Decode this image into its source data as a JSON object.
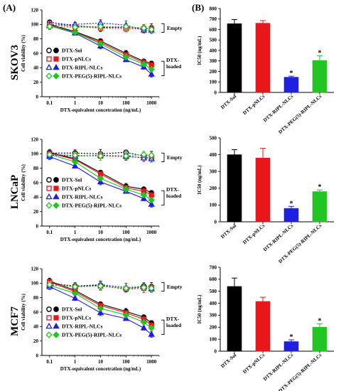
{
  "panel_labels": [
    "(A)",
    "(B)"
  ],
  "rows": [
    {
      "cell_line": "SKOV3"
    },
    {
      "cell_line": "LNCaP"
    },
    {
      "cell_line": "MCF7"
    }
  ],
  "colors": {
    "DTX-Sol": "#000000",
    "DTX-pNLCs": "#e8171b",
    "DTX-RIPL-NLCs": "#1f1fe0",
    "DTX-PEG(5)-RIPL-NLCs": "#22c522"
  },
  "chart_data": [
    {
      "type": "line",
      "cell_line": "SKOV3",
      "xlabel": "DTX-equivalent concetration (ng/mL)",
      "ylabel": "Cell viability (%)",
      "xscale": "log",
      "x": [
        0.1,
        1,
        10,
        100,
        500,
        1000
      ],
      "x_ticks": [
        "0.1",
        "1",
        "10",
        "100",
        "1000"
      ],
      "y_ticks": [
        "0",
        "20",
        "40",
        "60",
        "80",
        "100",
        "120"
      ],
      "ylim": [
        0,
        120
      ],
      "legend": [
        "DTX-Sol",
        "DTX-pNLCs",
        "DTX-RIPL-NLCs",
        "DTX-PEG(5)-RIPL-NLCs"
      ],
      "annotations": [
        "Empty",
        "DTX-loaded"
      ],
      "series": [
        {
          "name": "DTX-Sol",
          "group": "empty",
          "marker": "circle",
          "values": [
            103,
            98,
            96,
            96,
            95,
            95
          ]
        },
        {
          "name": "DTX-pNLCs",
          "group": "empty",
          "marker": "square",
          "values": [
            100,
            97,
            95,
            94,
            94,
            94
          ]
        },
        {
          "name": "DTX-RIPL-NLCs",
          "group": "empty",
          "marker": "triangle",
          "values": [
            99,
            100,
            102,
            99,
            92,
            92
          ]
        },
        {
          "name": "DTX-PEG(5)-RIPL-NLCs",
          "group": "empty",
          "marker": "diamond",
          "values": [
            97,
            96,
            97,
            97,
            95,
            93
          ]
        },
        {
          "name": "DTX-Sol",
          "group": "loaded",
          "marker": "circle",
          "values": [
            100,
            90,
            77,
            60,
            49,
            46
          ]
        },
        {
          "name": "DTX-pNLCs",
          "group": "loaded",
          "marker": "square",
          "values": [
            99,
            89,
            75,
            58,
            47,
            44
          ]
        },
        {
          "name": "DTX-RIPL-NLCs",
          "group": "loaded",
          "marker": "triangle",
          "values": [
            98,
            88,
            70,
            51,
            41,
            31
          ]
        },
        {
          "name": "DTX-PEG(5)-RIPL-NLCs",
          "group": "loaded",
          "marker": "diamond",
          "values": [
            98,
            89,
            73,
            55,
            45,
            38
          ]
        }
      ]
    },
    {
      "type": "bar",
      "cell_line": "SKOV3",
      "ylabel": "IC50 (ng/mL)",
      "categories": [
        "DTX-Sol",
        "DTX-pNLCs",
        "DTX-RIPL-NLCs",
        "DTX-PEG(5)-RIPL-NLCs"
      ],
      "values": [
        655,
        660,
        145,
        305
      ],
      "errors": [
        40,
        25,
        10,
        45
      ],
      "significant": [
        false,
        false,
        true,
        true
      ],
      "y_ticks": [
        "0",
        "100",
        "200",
        "300",
        "400",
        "500",
        "600",
        "700",
        "800"
      ],
      "ylim": [
        0,
        800
      ]
    },
    {
      "type": "line",
      "cell_line": "LNCaP",
      "xlabel": "DTX-equivalent concetration (ng/mL)",
      "ylabel": "Cell viability (%)",
      "xscale": "log",
      "x": [
        0.1,
        1,
        10,
        100,
        500,
        1000
      ],
      "x_ticks": [
        "0.1",
        "1",
        "10",
        "100",
        "1000"
      ],
      "y_ticks": [
        "0",
        "20",
        "40",
        "60",
        "80",
        "100",
        "120"
      ],
      "ylim": [
        0,
        120
      ],
      "legend": [
        "DTX-Sol",
        "DTX-pNLCs",
        "DTX-RIPL-NLCs",
        "DTX-PEG(5)-RIPL-NLCs"
      ],
      "annotations": [
        "Empty",
        "DTX-loaded"
      ],
      "series": [
        {
          "name": "DTX-Sol",
          "group": "empty",
          "marker": "circle",
          "values": [
            101,
            101,
            100,
            102,
            97,
            97
          ]
        },
        {
          "name": "DTX-pNLCs",
          "group": "empty",
          "marker": "square",
          "values": [
            100,
            97,
            97,
            96,
            95,
            95
          ]
        },
        {
          "name": "DTX-RIPL-NLCs",
          "group": "empty",
          "marker": "triangle",
          "values": [
            98,
            97,
            98,
            97,
            94,
            93
          ]
        },
        {
          "name": "DTX-PEG(5)-RIPL-NLCs",
          "group": "empty",
          "marker": "diamond",
          "values": [
            99,
            98,
            97,
            97,
            99,
            98
          ]
        },
        {
          "name": "DTX-Sol",
          "group": "loaded",
          "marker": "circle",
          "values": [
            102,
            93,
            74,
            55,
            51,
            46
          ]
        },
        {
          "name": "DTX-pNLCs",
          "group": "loaded",
          "marker": "square",
          "values": [
            101,
            92,
            72,
            53,
            48,
            43
          ]
        },
        {
          "name": "DTX-RIPL-NLCs",
          "group": "loaded",
          "marker": "triangle",
          "values": [
            96,
            83,
            61,
            48,
            38,
            30
          ]
        },
        {
          "name": "DTX-PEG(5)-RIPL-NLCs",
          "group": "loaded",
          "marker": "diamond",
          "values": [
            99,
            89,
            66,
            51,
            43,
            36
          ]
        }
      ]
    },
    {
      "type": "bar",
      "cell_line": "LNCaP",
      "ylabel": "IC50 (ng/mL)",
      "categories": [
        "DTX-Sol",
        "DTX-pNLCs",
        "DTX-RIPL-NLCs",
        "DTX-PEG(5)-RIPL-NLCs"
      ],
      "values": [
        400,
        380,
        80,
        180
      ],
      "errors": [
        30,
        58,
        12,
        10
      ],
      "significant": [
        false,
        false,
        true,
        true
      ],
      "y_ticks": [
        "0",
        "100",
        "200",
        "300",
        "400",
        "500"
      ],
      "ylim": [
        0,
        500
      ]
    },
    {
      "type": "line",
      "cell_line": "MCF7",
      "xlabel": "DTX-equivalent concetration (ng/mL)",
      "ylabel": "Cell viability (%)",
      "xscale": "log",
      "x": [
        0.1,
        1,
        10,
        100,
        500,
        1000
      ],
      "x_ticks": [
        "0.1",
        "1",
        "10",
        "100",
        "1000"
      ],
      "y_ticks": [
        "0",
        "20",
        "40",
        "60",
        "80",
        "100",
        "120"
      ],
      "ylim": [
        0,
        120
      ],
      "legend": [
        "DTX-Sol",
        "DTX-pNLCs",
        "DTX-RIPL-NLCs",
        "DTX-PEG(5)-RIPL-NLCs"
      ],
      "annotations": [
        "Empty",
        "DTX-loaded"
      ],
      "series": [
        {
          "name": "DTX-Sol",
          "group": "empty",
          "marker": "circle",
          "values": [
            100,
            96,
            97,
            92,
            96,
            95
          ]
        },
        {
          "name": "DTX-pNLCs",
          "group": "empty",
          "marker": "square",
          "values": [
            101,
            95,
            96,
            92,
            93,
            94
          ]
        },
        {
          "name": "DTX-RIPL-NLCs",
          "group": "empty",
          "marker": "triangle",
          "values": [
            97,
            96,
            98,
            94,
            95,
            92
          ]
        },
        {
          "name": "DTX-PEG(5)-RIPL-NLCs",
          "group": "empty",
          "marker": "diamond",
          "values": [
            98,
            95,
            96,
            93,
            94,
            93
          ]
        },
        {
          "name": "DTX-Sol",
          "group": "loaded",
          "marker": "circle",
          "values": [
            103,
            90,
            71,
            61,
            53,
            45
          ]
        },
        {
          "name": "DTX-pNLCs",
          "group": "loaded",
          "marker": "square",
          "values": [
            102,
            88,
            69,
            59,
            50,
            42
          ]
        },
        {
          "name": "DTX-RIPL-NLCs",
          "group": "loaded",
          "marker": "triangle",
          "values": [
            95,
            79,
            59,
            51,
            38,
            29
          ]
        },
        {
          "name": "DTX-PEG(5)-RIPL-NLCs",
          "group": "loaded",
          "marker": "diamond",
          "values": [
            97,
            86,
            65,
            56,
            46,
            38
          ]
        }
      ]
    },
    {
      "type": "bar",
      "cell_line": "MCF7",
      "ylabel": "IC50 (ng/mL)",
      "categories": [
        "DTX-Sol",
        "DTX-pNLCs",
        "DTX-RIPL-NLCs",
        "DTX-PEG(5)-RIPL-NLCs"
      ],
      "values": [
        540,
        415,
        80,
        200
      ],
      "errors": [
        70,
        35,
        15,
        28
      ],
      "significant": [
        false,
        false,
        true,
        true
      ],
      "y_ticks": [
        "0",
        "100",
        "200",
        "300",
        "400",
        "500",
        "600",
        "700"
      ],
      "ylim": [
        0,
        700
      ]
    }
  ]
}
